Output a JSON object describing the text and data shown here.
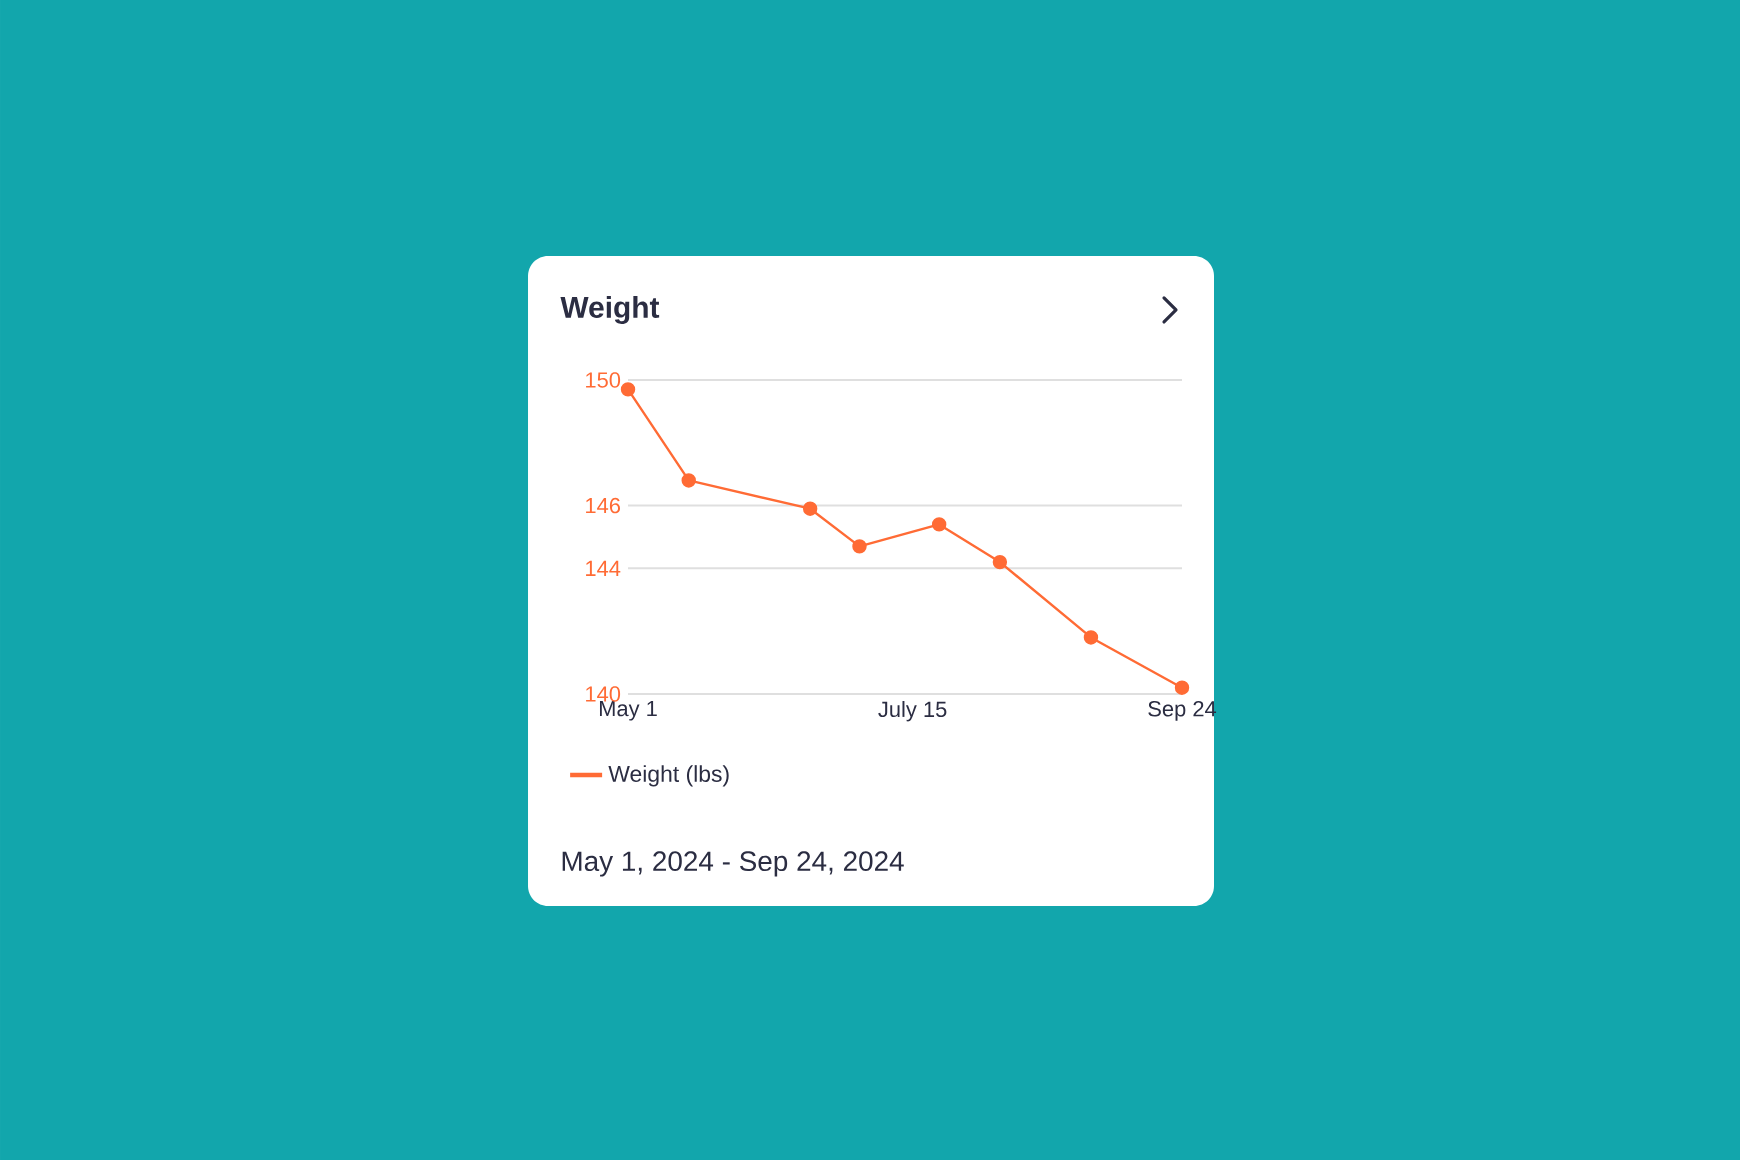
{
  "chart_data": {
    "type": "line",
    "title": "Weight",
    "x": [
      "2024-05-01",
      "2024-05-17",
      "2024-06-18",
      "2024-07-01",
      "2024-07-22",
      "2024-08-07",
      "2024-08-31",
      "2024-09-24"
    ],
    "series": [
      {
        "name": "Weight (lbs)",
        "color": "#ff6b35",
        "values": [
          149.7,
          146.8,
          145.9,
          144.7,
          145.4,
          144.2,
          141.8,
          140.2
        ]
      }
    ],
    "xlim": [
      "2024-05-01",
      "2024-09-24"
    ],
    "xticks": [
      {
        "value": "2024-05-01",
        "label": "May 1"
      },
      {
        "value": "2024-07-15",
        "label": "July 15"
      },
      {
        "value": "2024-09-24",
        "label": "Sep 24"
      }
    ],
    "ylim": [
      140,
      150
    ],
    "yticks": [
      140,
      144,
      146,
      150
    ],
    "grid": "y",
    "legend": "bottom",
    "marker": "circle",
    "annotations": [
      "May 1, 2024 - Sep 24, 2024"
    ]
  }
}
